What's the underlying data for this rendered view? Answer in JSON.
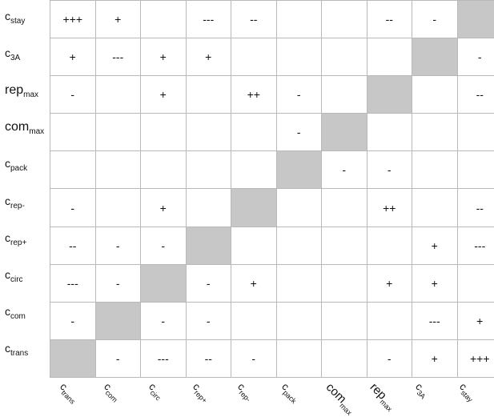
{
  "rows": [
    {
      "label": {
        "main": "c",
        "sub": "stay"
      },
      "cells": [
        "+++",
        "+",
        "",
        "---",
        "--",
        "",
        "",
        "--",
        "-",
        ""
      ]
    },
    {
      "label": {
        "main": "c",
        "sub": "3A"
      },
      "cells": [
        "+",
        "---",
        "+",
        "+",
        "",
        "",
        "",
        "",
        "",
        "-"
      ]
    },
    {
      "label": {
        "main": "rep",
        "sub": "max"
      },
      "cells": [
        "-",
        "",
        "+",
        "",
        "++",
        "-",
        "",
        "",
        "",
        "--"
      ]
    },
    {
      "label": {
        "main": "com",
        "sub": "max"
      },
      "cells": [
        "",
        "",
        "",
        "",
        "",
        "-",
        "",
        "",
        "",
        ""
      ]
    },
    {
      "label": {
        "main": "c",
        "sub": "pack"
      },
      "cells": [
        "",
        "",
        "",
        "",
        "",
        "",
        "-",
        "-",
        "",
        ""
      ]
    },
    {
      "label": {
        "main": "c",
        "sub": "rep-"
      },
      "cells": [
        "-",
        "",
        "+",
        "",
        "",
        "",
        "",
        "++",
        "",
        "--"
      ]
    },
    {
      "label": {
        "main": "c",
        "sub": "rep+"
      },
      "cells": [
        "--",
        "-",
        "-",
        "",
        "",
        "",
        "",
        "",
        "+",
        "---"
      ]
    },
    {
      "label": {
        "main": "c",
        "sub": "circ"
      },
      "cells": [
        "---",
        "-",
        "",
        "-",
        "+",
        "",
        "",
        "+",
        "+",
        ""
      ]
    },
    {
      "label": {
        "main": "c",
        "sub": "com"
      },
      "cells": [
        "-",
        "",
        "-",
        "-",
        "",
        "",
        "",
        "",
        "---",
        "+"
      ]
    },
    {
      "label": {
        "main": "c",
        "sub": "trans"
      },
      "cells": [
        "",
        "-",
        "---",
        "--",
        "-",
        "",
        "",
        "-",
        "+",
        "+++"
      ]
    }
  ],
  "columns": [
    {
      "main": "c",
      "sub": "trans"
    },
    {
      "main": "c",
      "sub": "com"
    },
    {
      "main": "c",
      "sub": "circ"
    },
    {
      "main": "c",
      "sub": "rep+"
    },
    {
      "main": "c",
      "sub": "rep-"
    },
    {
      "main": "c",
      "sub": "pack"
    },
    {
      "main": "com",
      "sub": "max"
    },
    {
      "main": "rep",
      "sub": "max"
    },
    {
      "main": "c",
      "sub": "3A"
    },
    {
      "main": "c",
      "sub": "stay"
    }
  ],
  "diagonal_color": "#c7c7c7",
  "grid_line_color": "#b9b9b9"
}
